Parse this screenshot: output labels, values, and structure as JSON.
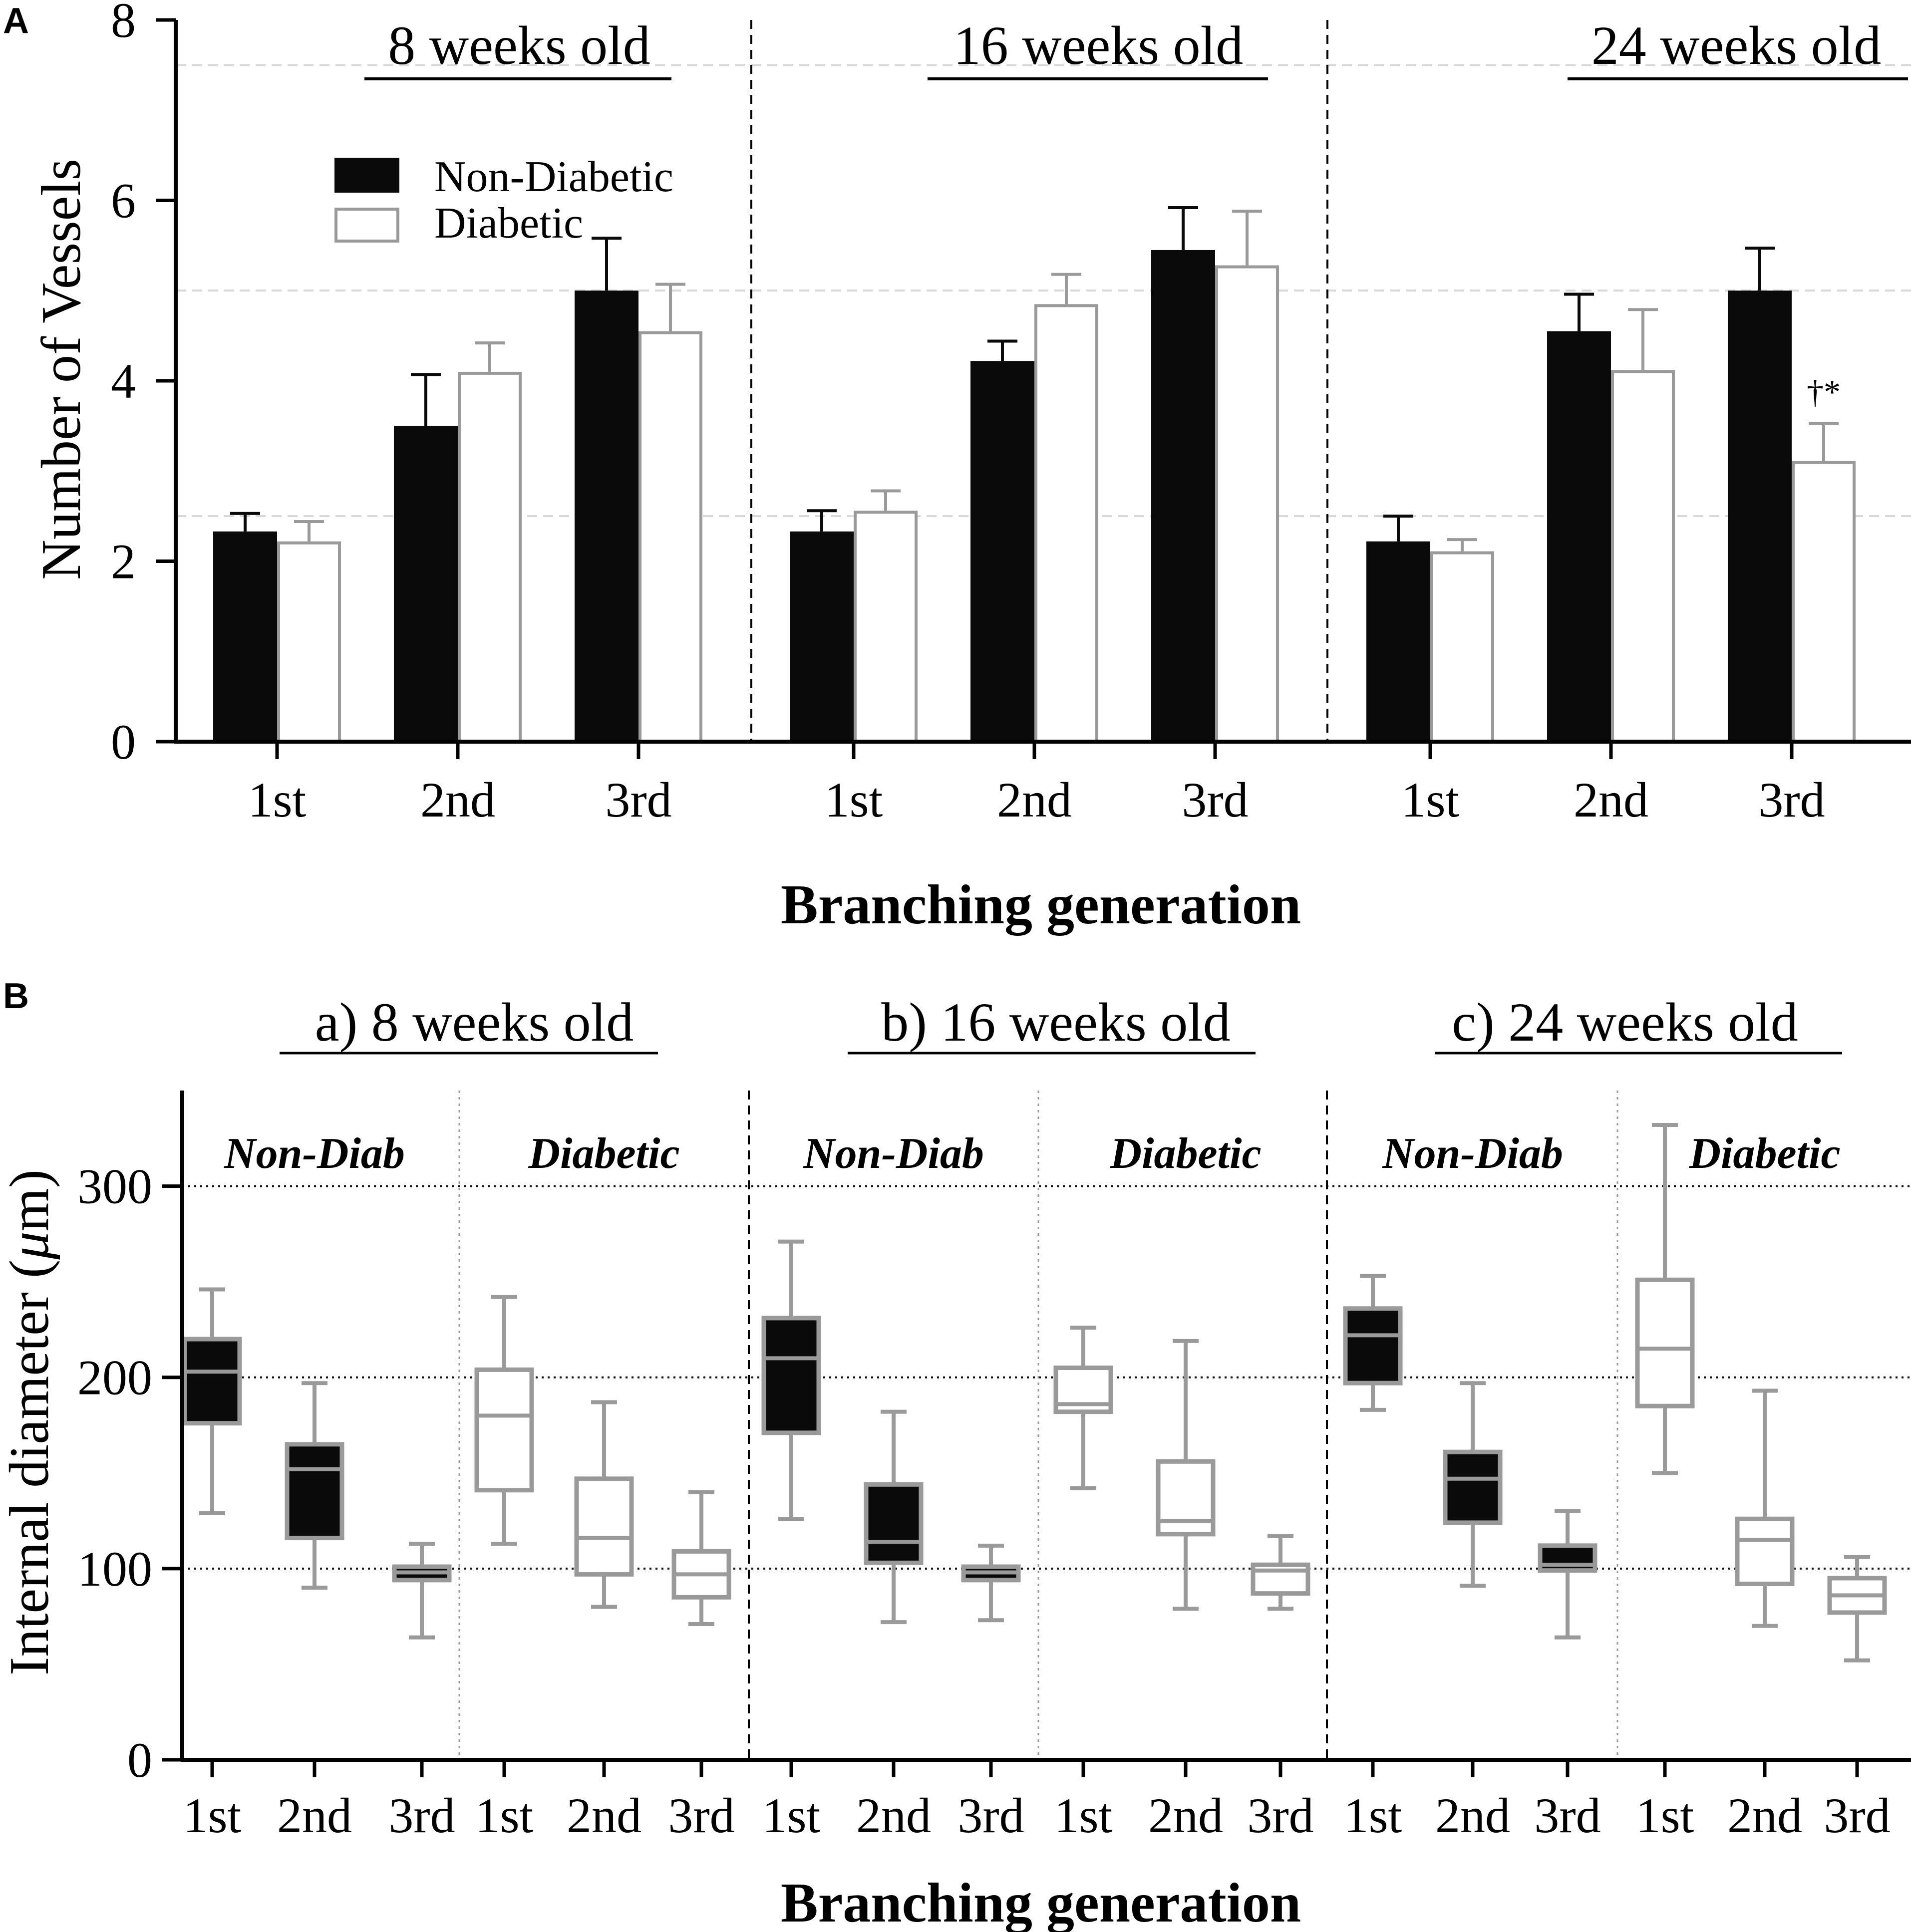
{
  "colors": {
    "nondiabetic": "#0a0a0a",
    "diabetic": "#ffffff",
    "gray": "#9a9a9a",
    "grid": "#d8d8d8"
  },
  "chart_data": [
    {
      "panel": "A",
      "type": "bar",
      "ylabel": "Number of Vessels",
      "xlabel": "Branching generation",
      "ylim": [
        0,
        8
      ],
      "yticks": [
        0,
        2,
        4,
        6,
        8
      ],
      "gridlines": [
        2.5,
        5,
        7.5
      ],
      "categories": [
        "1st",
        "2nd",
        "3rd"
      ],
      "legend": [
        "Non-Diabetic",
        "Diabetic"
      ],
      "legend_position": "top-left",
      "groups": [
        {
          "title": "8 weeks old",
          "series": [
            {
              "name": "Non-Diabetic",
              "values": [
                2.33,
                3.5,
                5.0
              ],
              "errors": [
                0.2,
                0.57,
                0.58
              ]
            },
            {
              "name": "Diabetic",
              "values": [
                2.22,
                4.1,
                4.55
              ],
              "errors": [
                0.22,
                0.32,
                0.52
              ]
            }
          ]
        },
        {
          "title": "16 weeks old",
          "series": [
            {
              "name": "Non-Diabetic",
              "values": [
                2.33,
                4.22,
                5.45
              ],
              "errors": [
                0.23,
                0.22,
                0.47
              ]
            },
            {
              "name": "Diabetic",
              "values": [
                2.56,
                4.85,
                5.28
              ],
              "errors": [
                0.22,
                0.33,
                0.6
              ]
            }
          ]
        },
        {
          "title": "24 weeks old",
          "series": [
            {
              "name": "Non-Diabetic",
              "values": [
                2.22,
                4.55,
                5.0
              ],
              "errors": [
                0.28,
                0.41,
                0.47
              ]
            },
            {
              "name": "Diabetic",
              "values": [
                2.11,
                4.12,
                3.11
              ],
              "errors": [
                0.13,
                0.67,
                0.42
              ]
            }
          ]
        }
      ],
      "annotations": [
        {
          "group": 2,
          "category": "3rd",
          "series": "Diabetic",
          "text": "†*"
        }
      ]
    },
    {
      "panel": "B",
      "type": "box",
      "ylabel": "Internal diameter (",
      "ylabel_mu": "μ",
      "ylabel_end": "m)",
      "xlabel": "Branching generation",
      "ylim": [
        0,
        350
      ],
      "yticks": [
        0,
        100,
        200,
        300
      ],
      "gridlines": [
        100,
        200,
        300
      ],
      "categories": [
        "1st",
        "2nd",
        "3rd"
      ],
      "groups": [
        {
          "title": "a) 8 weeks old",
          "subgroups": [
            {
              "label": "Non-Diab",
              "boxes": [
                {
                  "min": 129,
                  "q1": 176,
                  "median": 203,
                  "q3": 220,
                  "max": 246
                },
                {
                  "min": 90,
                  "q1": 116,
                  "median": 152,
                  "q3": 165,
                  "max": 197
                },
                {
                  "min": 64,
                  "q1": 94,
                  "median": 98,
                  "q3": 101,
                  "max": 113
                }
              ]
            },
            {
              "label": "Diabetic",
              "boxes": [
                {
                  "min": 113,
                  "q1": 141,
                  "median": 180,
                  "q3": 204,
                  "max": 242
                },
                {
                  "min": 80,
                  "q1": 97,
                  "median": 116,
                  "q3": 147,
                  "max": 187
                },
                {
                  "min": 71,
                  "q1": 85,
                  "median": 97,
                  "q3": 109,
                  "max": 140
                }
              ]
            }
          ]
        },
        {
          "title": "b) 16 weeks old",
          "subgroups": [
            {
              "label": "Non-Diab",
              "boxes": [
                {
                  "min": 126,
                  "q1": 171,
                  "median": 210,
                  "q3": 231,
                  "max": 271
                },
                {
                  "min": 72,
                  "q1": 103,
                  "median": 114,
                  "q3": 144,
                  "max": 182
                },
                {
                  "min": 73,
                  "q1": 94,
                  "median": 98,
                  "q3": 101,
                  "max": 112
                }
              ]
            },
            {
              "label": "Diabetic",
              "boxes": [
                {
                  "min": 142,
                  "q1": 182,
                  "median": 186,
                  "q3": 205,
                  "max": 226
                },
                {
                  "min": 79,
                  "q1": 118,
                  "median": 125,
                  "q3": 156,
                  "max": 219
                },
                {
                  "min": 79,
                  "q1": 87,
                  "median": 99,
                  "q3": 102,
                  "max": 117
                }
              ]
            }
          ]
        },
        {
          "title": "c) 24 weeks old",
          "subgroups": [
            {
              "label": "Non-Diab",
              "boxes": [
                {
                  "min": 183,
                  "q1": 197,
                  "median": 222,
                  "q3": 236,
                  "max": 253
                },
                {
                  "min": 91,
                  "q1": 124,
                  "median": 147,
                  "q3": 161,
                  "max": 197
                },
                {
                  "min": 64,
                  "q1": 99,
                  "median": 102,
                  "q3": 112,
                  "max": 130
                }
              ]
            },
            {
              "label": "Diabetic",
              "boxes": [
                {
                  "min": 150,
                  "q1": 185,
                  "median": 215,
                  "q3": 251,
                  "max": 332
                },
                {
                  "min": 70,
                  "q1": 92,
                  "median": 115,
                  "q3": 126,
                  "max": 193
                },
                {
                  "min": 52,
                  "q1": 77,
                  "median": 86,
                  "q3": 95,
                  "max": 106
                }
              ]
            }
          ]
        }
      ]
    }
  ]
}
